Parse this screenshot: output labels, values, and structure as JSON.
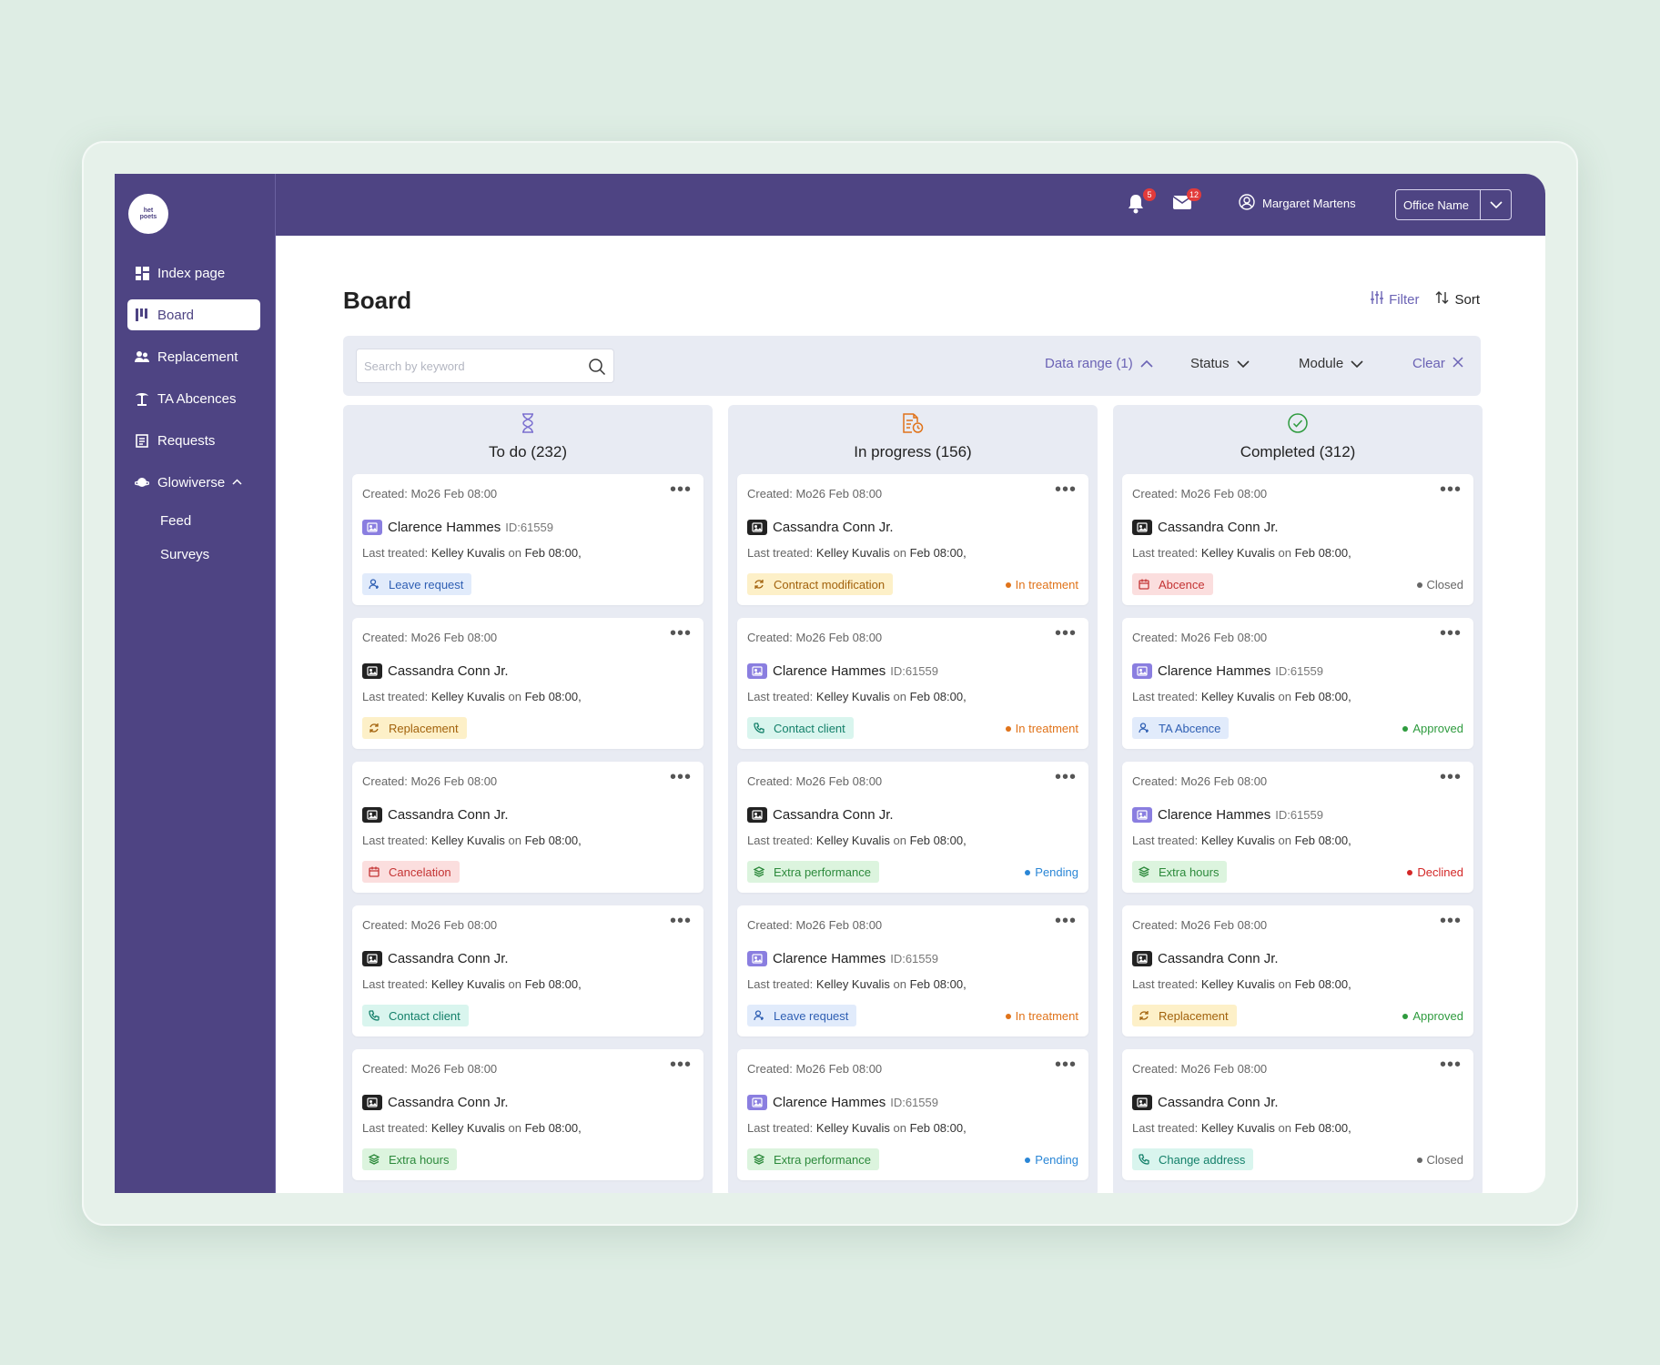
{
  "logo": {
    "line1": "het",
    "line2": "poets"
  },
  "sidebar": {
    "items": [
      {
        "label": "Index page",
        "icon": "dashboard-icon"
      },
      {
        "label": "Board",
        "icon": "board-icon",
        "active": true
      },
      {
        "label": "Replacement",
        "icon": "users-icon"
      },
      {
        "label": "TA Abcences",
        "icon": "palm-tree-icon"
      },
      {
        "label": "Requests",
        "icon": "requests-icon"
      },
      {
        "label": "Glowiverse",
        "icon": "globe-icon",
        "expanded": true
      }
    ],
    "subitems": [
      {
        "label": "Feed"
      },
      {
        "label": "Surveys"
      }
    ]
  },
  "header": {
    "notifications_count": "5",
    "messages_count": "12",
    "user_name": "Margaret Martens",
    "office": "Office Name"
  },
  "main": {
    "title": "Board",
    "filter_label": "Filter",
    "sort_label": "Sort"
  },
  "filters": {
    "search_placeholder": "Search by keyword",
    "data_range": "Data range (1)",
    "status": "Status",
    "module": "Module",
    "clear": "Clear"
  },
  "colors": {
    "brand": "#4e4483",
    "accent": "#6b63b5",
    "in_treatment": "#e0731a",
    "pending": "#2a86d6",
    "approved": "#2e9b3e",
    "declined": "#d32727",
    "closed": "#666666"
  },
  "columns": [
    {
      "title": "To do (232)",
      "icon": "hourglass-icon",
      "cards": [
        {
          "created": "Created: Mo26  Feb 08:00",
          "name": "Clarence Hammes",
          "id": "ID:61559",
          "avatar": "purple",
          "last_prefix": "Last treated:",
          "last_name": "Kelley Kuvalis",
          "last_mid": "on",
          "last_date": "Feb 08:00,",
          "tag": "Leave request",
          "tag_color": "blue",
          "tag_icon": "person",
          "status": "",
          "status_color": ""
        },
        {
          "created": "Created: Mo26  Feb 08:00",
          "name": "Cassandra Conn Jr.",
          "id": "",
          "avatar": "dark",
          "last_prefix": "Last treated:",
          "last_name": "Kelley Kuvalis",
          "last_mid": "on",
          "last_date": "Feb 08:00,",
          "tag": "Replacement",
          "tag_color": "yellow",
          "tag_icon": "refresh",
          "status": "",
          "status_color": ""
        },
        {
          "created": "Created: Mo26  Feb 08:00",
          "name": "Cassandra Conn Jr.",
          "id": "",
          "avatar": "dark",
          "last_prefix": "Last treated:",
          "last_name": "Kelley Kuvalis",
          "last_mid": "on",
          "last_date": "Feb 08:00,",
          "tag": "Cancelation",
          "tag_color": "red",
          "tag_icon": "calendar",
          "status": "",
          "status_color": ""
        },
        {
          "created": "Created: Mo26  Feb 08:00",
          "name": "Cassandra Conn Jr.",
          "id": "",
          "avatar": "dark",
          "last_prefix": "Last treated:",
          "last_name": "Kelley Kuvalis",
          "last_mid": "on",
          "last_date": "Feb 08:00,",
          "tag": "Contact client",
          "tag_color": "teal",
          "tag_icon": "phone",
          "status": "",
          "status_color": ""
        },
        {
          "created": "Created: Mo26  Feb 08:00",
          "name": "Cassandra Conn Jr.",
          "id": "",
          "avatar": "dark",
          "last_prefix": "Last treated:",
          "last_name": "Kelley Kuvalis",
          "last_mid": "on",
          "last_date": "Feb 08:00,",
          "tag": "Extra hours",
          "tag_color": "green",
          "tag_icon": "stack",
          "status": "",
          "status_color": ""
        }
      ]
    },
    {
      "title": "In progress (156)",
      "icon": "document-clock-icon",
      "cards": [
        {
          "created": "Created: Mo26  Feb 08:00",
          "name": "Cassandra Conn Jr.",
          "id": "",
          "avatar": "dark",
          "last_prefix": "Last treated:",
          "last_name": "Kelley Kuvalis",
          "last_mid": "on",
          "last_date": "Feb 08:00,",
          "tag": "Contract modification",
          "tag_color": "yellow",
          "tag_icon": "refresh",
          "status": "In treatment",
          "status_color": "#e0731a"
        },
        {
          "created": "Created: Mo26  Feb 08:00",
          "name": "Clarence Hammes",
          "id": "ID:61559",
          "avatar": "purple",
          "last_prefix": "Last treated:",
          "last_name": "Kelley Kuvalis",
          "last_mid": "on",
          "last_date": "Feb 08:00,",
          "tag": "Contact client",
          "tag_color": "teal",
          "tag_icon": "phone",
          "status": "In treatment",
          "status_color": "#e0731a"
        },
        {
          "created": "Created: Mo26  Feb 08:00",
          "name": "Cassandra Conn Jr.",
          "id": "",
          "avatar": "dark",
          "last_prefix": "Last treated:",
          "last_name": "Kelley Kuvalis",
          "last_mid": "on",
          "last_date": "Feb 08:00,",
          "tag": "Extra performance",
          "tag_color": "green",
          "tag_icon": "stack",
          "status": "Pending",
          "status_color": "#2a86d6"
        },
        {
          "created": "Created: Mo26  Feb 08:00",
          "name": "Clarence Hammes",
          "id": "ID:61559",
          "avatar": "purple",
          "last_prefix": "Last treated:",
          "last_name": "Kelley Kuvalis",
          "last_mid": "on",
          "last_date": "Feb 08:00,",
          "tag": "Leave request",
          "tag_color": "blue",
          "tag_icon": "person",
          "status": "In treatment",
          "status_color": "#e0731a"
        },
        {
          "created": "Created: Mo26  Feb 08:00",
          "name": "Clarence Hammes",
          "id": "ID:61559",
          "avatar": "purple",
          "last_prefix": "Last treated:",
          "last_name": "Kelley Kuvalis",
          "last_mid": "on",
          "last_date": "Feb 08:00,",
          "tag": "Extra performance",
          "tag_color": "green",
          "tag_icon": "stack",
          "status": "Pending",
          "status_color": "#2a86d6"
        }
      ]
    },
    {
      "title": "Completed  (312)",
      "icon": "check-circle-icon",
      "cards": [
        {
          "created": "Created: Mo26  Feb 08:00",
          "name": "Cassandra Conn Jr.",
          "id": "",
          "avatar": "dark",
          "last_prefix": "Last treated:",
          "last_name": "Kelley Kuvalis",
          "last_mid": "on",
          "last_date": "Feb 08:00,",
          "tag": "Abcence",
          "tag_color": "red",
          "tag_icon": "calendar",
          "status": "Closed",
          "status_color": "#666666"
        },
        {
          "created": "Created: Mo26  Feb 08:00",
          "name": "Clarence Hammes",
          "id": "ID:61559",
          "avatar": "purple",
          "last_prefix": "Last treated:",
          "last_name": "Kelley Kuvalis",
          "last_mid": "on",
          "last_date": "Feb 08:00,",
          "tag": "TA Abcence",
          "tag_color": "blue",
          "tag_icon": "person",
          "status": "Approved",
          "status_color": "#2e9b3e"
        },
        {
          "created": "Created: Mo26  Feb 08:00",
          "name": "Clarence Hammes",
          "id": "ID:61559",
          "avatar": "purple",
          "last_prefix": "Last treated:",
          "last_name": "Kelley Kuvalis",
          "last_mid": "on",
          "last_date": "Feb 08:00,",
          "tag": "Extra hours",
          "tag_color": "green",
          "tag_icon": "stack",
          "status": "Declined",
          "status_color": "#d32727"
        },
        {
          "created": "Created: Mo26  Feb 08:00",
          "name": "Cassandra Conn Jr.",
          "id": "",
          "avatar": "dark",
          "last_prefix": "Last treated:",
          "last_name": "Kelley Kuvalis",
          "last_mid": "on",
          "last_date": "Feb 08:00,",
          "tag": "Replacement",
          "tag_color": "yellow",
          "tag_icon": "refresh",
          "status": "Approved",
          "status_color": "#2e9b3e"
        },
        {
          "created": "Created: Mo26  Feb 08:00",
          "name": "Cassandra Conn Jr.",
          "id": "",
          "avatar": "dark",
          "last_prefix": "Last treated:",
          "last_name": "Kelley Kuvalis",
          "last_mid": "on",
          "last_date": "Feb 08:00,",
          "tag": "Change address",
          "tag_color": "teal",
          "tag_icon": "phone",
          "status": "Closed",
          "status_color": "#666666"
        }
      ]
    }
  ]
}
